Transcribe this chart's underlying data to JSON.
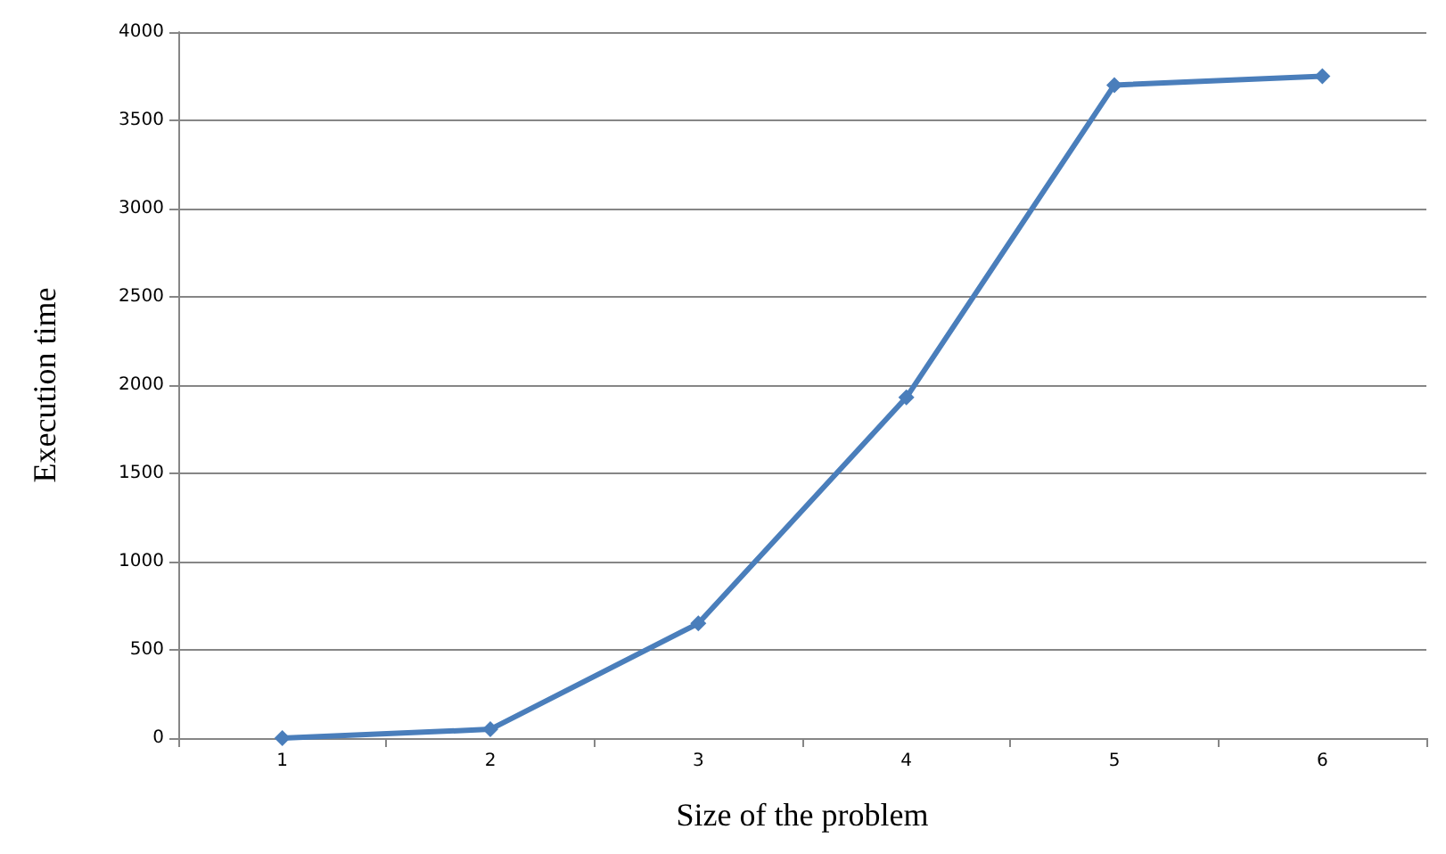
{
  "chart_data": {
    "type": "line",
    "xlabel": "Size of the problem",
    "ylabel": "Execution time",
    "categories": [
      "1",
      "2",
      "3",
      "4",
      "5",
      "6"
    ],
    "series": [
      {
        "color": "#4a7ebb",
        "values": [
          0,
          50,
          650,
          1930,
          3700,
          3750
        ]
      }
    ],
    "ylim": [
      0,
      4000
    ],
    "yticks": [
      0,
      500,
      1000,
      1500,
      2000,
      2500,
      3000,
      3500,
      4000
    ],
    "grid": "y",
    "marker": "diamond",
    "line_style": "solid"
  }
}
